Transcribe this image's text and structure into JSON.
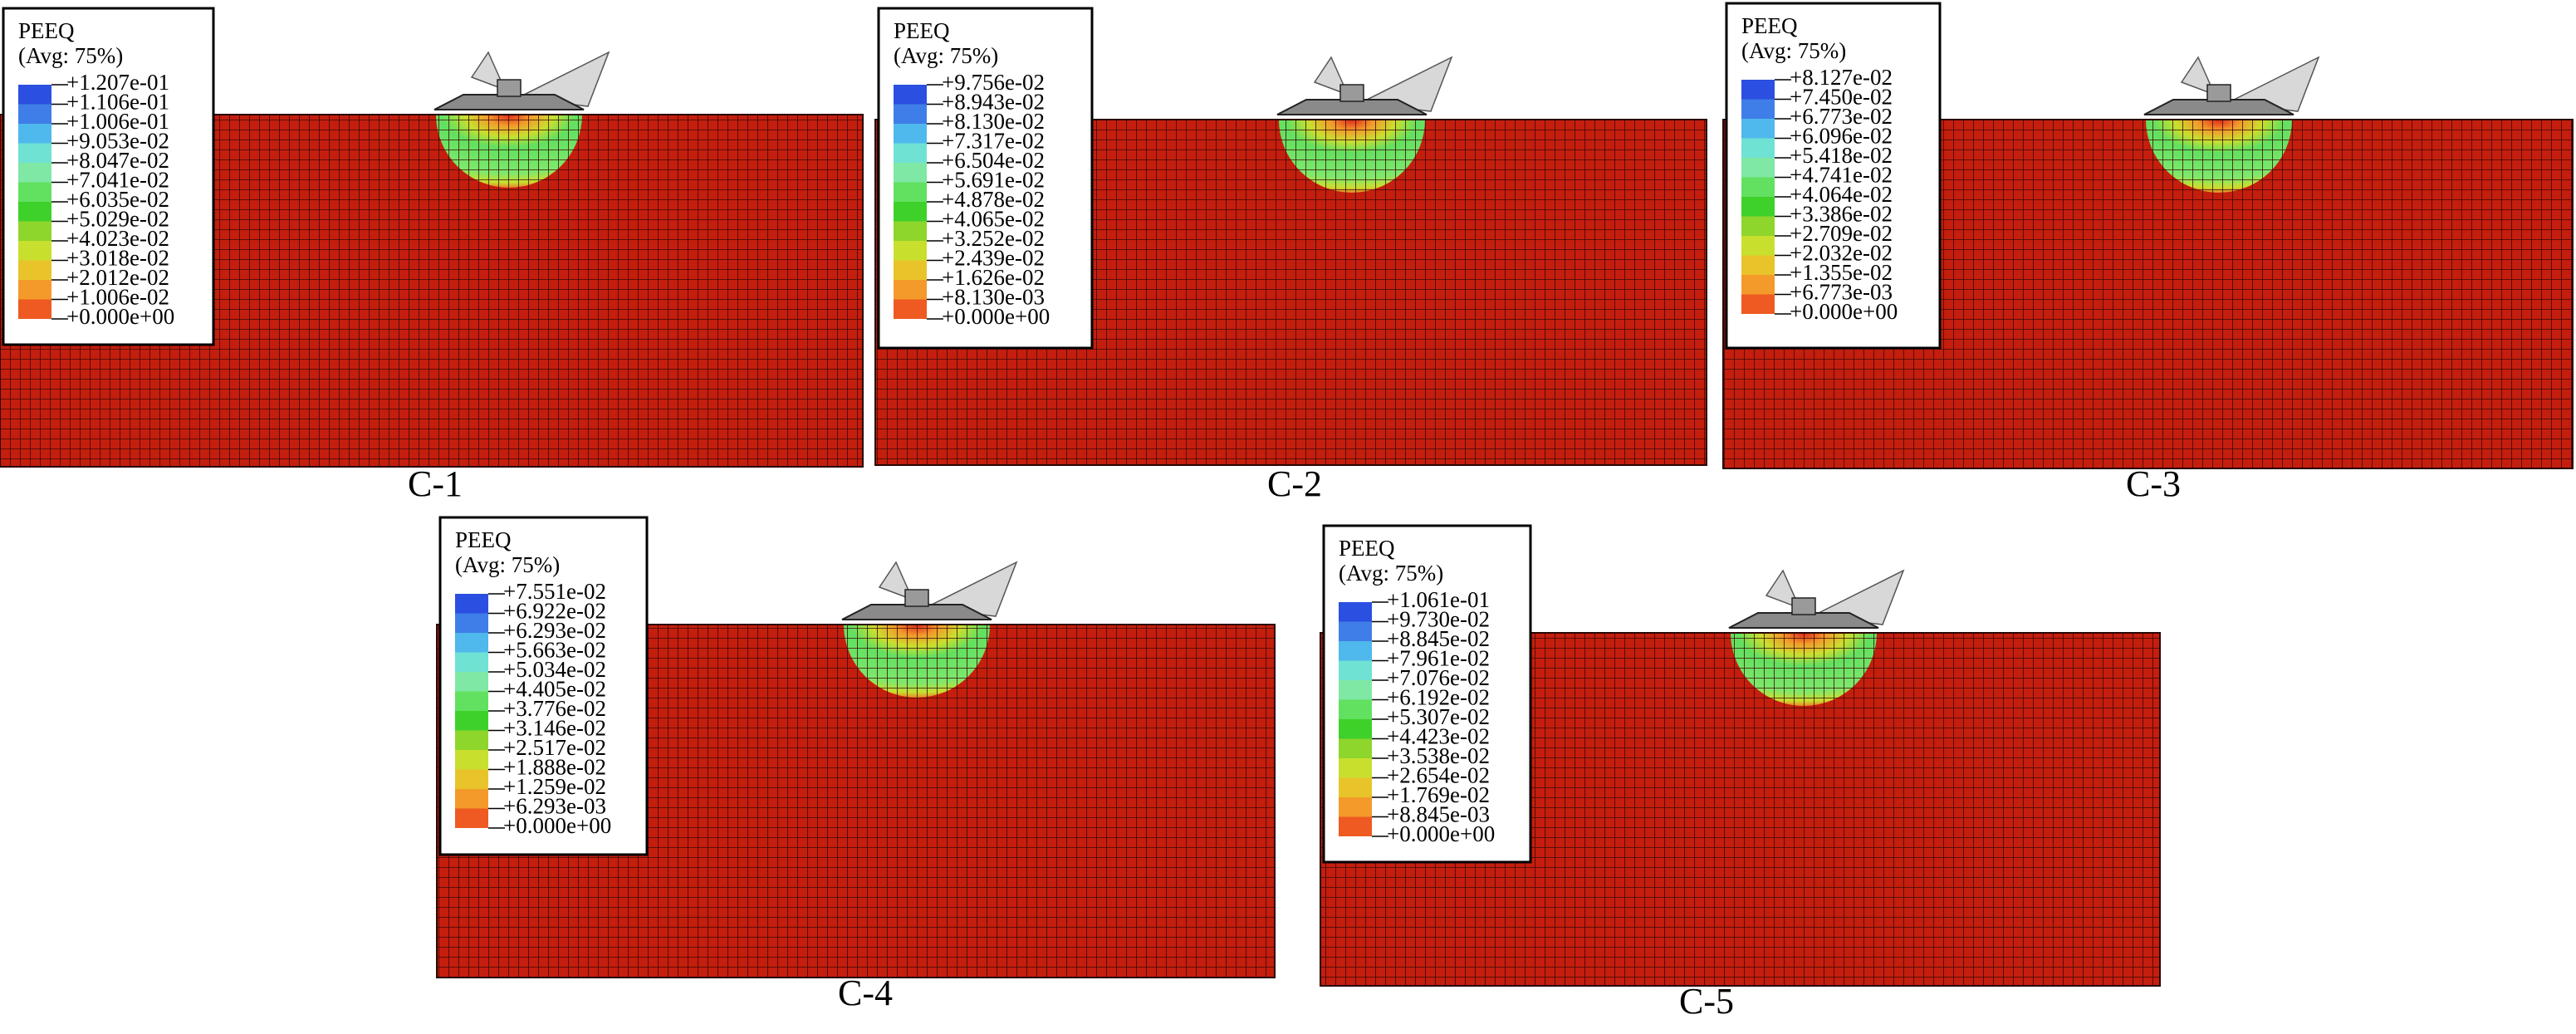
{
  "legend_colors": [
    "#2b4fe0",
    "#3f7ee8",
    "#4fb8ec",
    "#6fe2d4",
    "#7ee8a4",
    "#62e060",
    "#3ed12a",
    "#8ed52c",
    "#c9df2e",
    "#e8c42a",
    "#f39a2a",
    "#ee5a22",
    "#e0261c"
  ],
  "panels": [
    {
      "caption": "C-1",
      "legend": {
        "title": "PEEQ",
        "subtitle": "(Avg: 75%)",
        "labels": [
          "+1.207e-01",
          "+1.106e-01",
          "+1.006e-01",
          "+9.053e-02",
          "+8.047e-02",
          "+7.041e-02",
          "+6.035e-02",
          "+5.029e-02",
          "+4.023e-02",
          "+3.018e-02",
          "+2.012e-02",
          "+1.006e-02",
          "+0.000e+00"
        ]
      }
    },
    {
      "caption": "C-2",
      "legend": {
        "title": "PEEQ",
        "subtitle": "(Avg: 75%)",
        "labels": [
          "+9.756e-02",
          "+8.943e-02",
          "+8.130e-02",
          "+7.317e-02",
          "+6.504e-02",
          "+5.691e-02",
          "+4.878e-02",
          "+4.065e-02",
          "+3.252e-02",
          "+2.439e-02",
          "+1.626e-02",
          "+8.130e-03",
          "+0.000e+00"
        ]
      }
    },
    {
      "caption": "C-3",
      "legend": {
        "title": "PEEQ",
        "subtitle": "(Avg: 75%)",
        "labels": [
          "+8.127e-02",
          "+7.450e-02",
          "+6.773e-02",
          "+6.096e-02",
          "+5.418e-02",
          "+4.741e-02",
          "+4.064e-02",
          "+3.386e-02",
          "+2.709e-02",
          "+2.032e-02",
          "+1.355e-02",
          "+6.773e-03",
          "+0.000e+00"
        ]
      }
    },
    {
      "caption": "C-4",
      "legend": {
        "title": "PEEQ",
        "subtitle": "(Avg: 75%)",
        "labels": [
          "+7.551e-02",
          "+6.922e-02",
          "+6.293e-02",
          "+5.663e-02",
          "+5.034e-02",
          "+4.405e-02",
          "+3.776e-02",
          "+3.146e-02",
          "+2.517e-02",
          "+1.888e-02",
          "+1.259e-02",
          "+6.293e-03",
          "+0.000e+00"
        ]
      }
    },
    {
      "caption": "C-5",
      "legend": {
        "title": "PEEQ",
        "subtitle": "(Avg: 75%)",
        "labels": [
          "+1.061e-01",
          "+9.730e-02",
          "+8.845e-02",
          "+7.961e-02",
          "+7.076e-02",
          "+6.192e-02",
          "+5.307e-02",
          "+4.423e-02",
          "+3.538e-02",
          "+2.654e-02",
          "+1.769e-02",
          "+8.845e-03",
          "+0.000e+00"
        ]
      }
    }
  ]
}
